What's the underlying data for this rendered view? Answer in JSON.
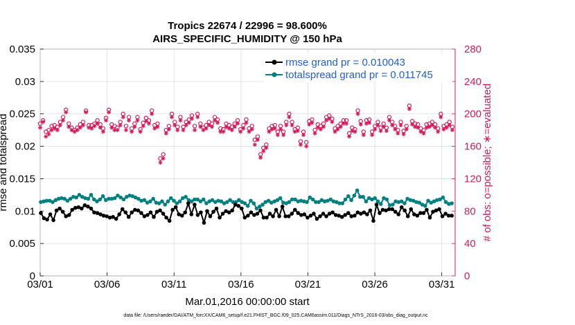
{
  "chart_data": {
    "type": "line",
    "title_line1": "Tropics 22674 / 22996 = 98.600%",
    "title_line2": "AIRS_SPECIFIC_HUMIDITY @ 150 hPa",
    "xlabel": "Mar.01,2016 00:00:00 start",
    "ylabel_left": "rmse and totalspread",
    "ylabel_right": "# of obs: o=possible; ∗=evaluated",
    "footnote": "data file: /Users/raeder/DAI/ATM_forcXX/CAM6_setup/f.e21.FHIST_BGC.f09_025.CAM6assim.011/Diags_NTrS_2016-03/obs_diag_output.nc",
    "xlim": [
      0,
      31
    ],
    "ylim_left": [
      0,
      0.035
    ],
    "ylim_right": [
      0,
      280
    ],
    "x_ticks": [
      0,
      5,
      10,
      15,
      20,
      25,
      30
    ],
    "x_tick_labels": [
      "03/01",
      "03/06",
      "03/11",
      "03/16",
      "03/21",
      "03/26",
      "03/31"
    ],
    "y_left_ticks": [
      0,
      0.005,
      0.01,
      0.015,
      0.02,
      0.025,
      0.03,
      0.035
    ],
    "y_left_tick_labels": [
      "0",
      "0.005",
      "0.01",
      "0.015",
      "0.02",
      "0.025",
      "0.03",
      "0.035"
    ],
    "y_right_ticks": [
      0,
      40,
      80,
      120,
      160,
      200,
      240,
      280
    ],
    "y_right_tick_labels": [
      "0",
      "40",
      "80",
      "120",
      "160",
      "200",
      "240",
      "280"
    ],
    "legend": [
      "rmse grand pr = 0.010043",
      "totalspread grand pr = 0.011745"
    ],
    "colors": {
      "rmse": "#000000",
      "spread": "#008080",
      "obs": "#d6195a",
      "legend_text": "#1f5fd6"
    },
    "n_per_day": 4,
    "series": [
      {
        "name": "rmse",
        "values": [
          0.0097,
          0.0089,
          0.0087,
          0.0095,
          0.0086,
          0.0101,
          0.0104,
          0.0099,
          0.0092,
          0.0094,
          0.0102,
          0.0105,
          0.0106,
          0.0104,
          0.0109,
          0.0107,
          0.0104,
          0.0098,
          0.0097,
          0.0095,
          0.0093,
          0.0092,
          0.009,
          0.0091,
          0.0088,
          0.0095,
          0.0103,
          0.0098,
          0.0091,
          0.0098,
          0.0102,
          0.0101,
          0.0097,
          0.0092,
          0.0094,
          0.0098,
          0.0091,
          0.0099,
          0.0101,
          0.0096,
          0.009,
          0.0085,
          0.0102,
          0.0106,
          0.0095,
          0.0093,
          0.0098,
          0.0112,
          0.0095,
          0.011,
          0.0094,
          0.0098,
          0.0082,
          0.01,
          0.0092,
          0.0099,
          0.0104,
          0.009,
          0.0096,
          0.01,
          0.0098,
          0.0101,
          0.011,
          0.0108,
          0.0104,
          0.009,
          0.0093,
          0.0098,
          0.0094,
          0.0096,
          0.0101,
          0.009,
          0.009,
          0.0096,
          0.0092,
          0.0102,
          0.0092,
          0.0107,
          0.0092,
          0.0092,
          0.0096,
          0.0102,
          0.0097,
          0.0094,
          0.0095,
          0.009,
          0.0093,
          0.0096,
          0.0088,
          0.0092,
          0.0096,
          0.0092,
          0.0096,
          0.0098,
          0.0094,
          0.0093,
          0.0091,
          0.0094,
          0.0097,
          0.0092,
          0.0093,
          0.0098,
          0.0096,
          0.0098,
          0.0095,
          0.0101,
          0.0085,
          0.011,
          0.0097,
          0.0102,
          0.0101,
          0.0103,
          0.0103,
          0.0099,
          0.0095,
          0.0106,
          0.0101,
          0.0092,
          0.0103,
          0.0095,
          0.0093,
          0.0097,
          0.0097,
          0.0102,
          0.009,
          0.0099,
          0.0101,
          0.0103,
          0.0092,
          0.0096,
          0.0093,
          0.0093
        ],
        "x_start": 0
      },
      {
        "name": "totalspread",
        "values": [
          0.0114,
          0.0115,
          0.0116,
          0.0116,
          0.0114,
          0.0117,
          0.0119,
          0.012,
          0.0119,
          0.0116,
          0.0119,
          0.0122,
          0.0121,
          0.0125,
          0.0122,
          0.012,
          0.0119,
          0.0125,
          0.0118,
          0.0115,
          0.0118,
          0.0123,
          0.0117,
          0.0119,
          0.0119,
          0.012,
          0.0124,
          0.0121,
          0.0118,
          0.0122,
          0.0124,
          0.0123,
          0.0121,
          0.0119,
          0.0116,
          0.0117,
          0.0113,
          0.0115,
          0.0119,
          0.0113,
          0.0112,
          0.0115,
          0.011,
          0.0115,
          0.012,
          0.0116,
          0.0112,
          0.0115,
          0.012,
          0.0122,
          0.0117,
          0.0115,
          0.0118,
          0.0118,
          0.0115,
          0.0118,
          0.0112,
          0.0115,
          0.0117,
          0.0114,
          0.0116,
          0.0115,
          0.0112,
          0.0114,
          0.0117,
          0.0114,
          0.0114,
          0.0117,
          0.0114,
          0.0112,
          0.0108,
          0.0116,
          0.0112,
          0.0104,
          0.0107,
          0.011,
          0.0114,
          0.0116,
          0.0113,
          0.0115,
          0.0117,
          0.012,
          0.0113,
          0.0112,
          0.0114,
          0.0118,
          0.0118,
          0.0115,
          0.0116,
          0.0115,
          0.0114,
          0.0121,
          0.0118,
          0.0114,
          0.0114,
          0.0117,
          0.0115,
          0.0116,
          0.0118,
          0.0115,
          0.0114,
          0.0112,
          0.0112,
          0.0118,
          0.0123,
          0.0117,
          0.0124,
          0.0132,
          0.0122,
          0.0122,
          0.0115,
          0.012,
          0.0118,
          0.012,
          0.0115,
          0.0111,
          0.012,
          0.0118,
          0.0109,
          0.011,
          0.0115,
          0.0114,
          0.0115,
          0.0112,
          0.0119,
          0.0117,
          0.0116,
          0.0114,
          0.0113,
          0.011,
          0.0108,
          0.0116,
          0.0113,
          0.0115,
          0.0117,
          0.0118,
          0.0121,
          0.0114,
          0.0111,
          0.0112
        ],
        "x_start": 0
      },
      {
        "name": "obs_possible",
        "values": [
          188,
          192,
          178,
          180,
          185,
          186,
          184,
          190,
          196,
          205,
          188,
          183,
          180,
          183,
          187,
          190,
          204,
          186,
          186,
          188,
          192,
          187,
          182,
          195,
          205,
          187,
          185,
          183,
          190,
          200,
          185,
          196,
          182,
          188,
          196,
          181,
          189,
          195,
          192,
          204,
          186,
          188,
          145,
          150,
          180,
          185,
          200,
          190,
          184,
          196,
          184,
          190,
          193,
          198,
          185,
          200,
          188,
          183,
          186,
          190,
          188,
          196,
          193,
          182,
          181,
          188,
          186,
          184,
          188,
          192,
          181,
          186,
          193,
          182,
          185,
          168,
          172,
          150,
          158,
          162,
          182,
          185,
          186,
          178,
          185,
          178,
          190,
          200,
          190,
          181,
          183,
          166,
          178,
          165,
          191,
          193,
          180,
          187,
          185,
          188,
          196,
          198,
          194,
          182,
          185,
          188,
          192,
          192,
          176,
          183,
          181,
          204,
          191,
          178,
          192,
          193,
          178,
          185,
          190,
          183,
          188,
          183,
          196,
          190,
          185,
          180,
          190,
          179,
          185,
          210,
          191,
          188,
          187,
          182,
          180,
          187,
          188,
          190,
          187,
          182,
          200,
          185,
          187,
          190,
          184
        ],
        "x_start": 0
      },
      {
        "name": "obs_evaluated",
        "values": [
          183,
          190,
          172,
          175,
          180,
          182,
          180,
          186,
          192,
          202,
          184,
          180,
          178,
          180,
          183,
          186,
          202,
          183,
          182,
          185,
          188,
          183,
          178,
          192,
          202,
          183,
          180,
          180,
          186,
          196,
          180,
          192,
          178,
          184,
          192,
          178,
          185,
          191,
          188,
          200,
          182,
          184,
          140,
          145,
          176,
          181,
          196,
          186,
          180,
          192,
          180,
          186,
          189,
          194,
          180,
          196,
          184,
          180,
          182,
          186,
          184,
          192,
          189,
          178,
          178,
          184,
          182,
          180,
          184,
          188,
          178,
          182,
          189,
          178,
          181,
          162,
          168,
          146,
          154,
          158,
          178,
          181,
          182,
          174,
          181,
          174,
          186,
          196,
          186,
          178,
          179,
          162,
          174,
          160,
          187,
          189,
          176,
          183,
          181,
          184,
          192,
          194,
          190,
          178,
          181,
          184,
          188,
          188,
          172,
          179,
          178,
          200,
          187,
          174,
          188,
          189,
          174,
          181,
          186,
          179,
          184,
          179,
          192,
          186,
          181,
          176,
          186,
          175,
          181,
          206,
          187,
          184,
          183,
          178,
          176,
          183,
          184,
          186,
          183,
          178,
          196,
          181,
          183,
          186,
          180
        ],
        "x_start": 0
      }
    ]
  }
}
